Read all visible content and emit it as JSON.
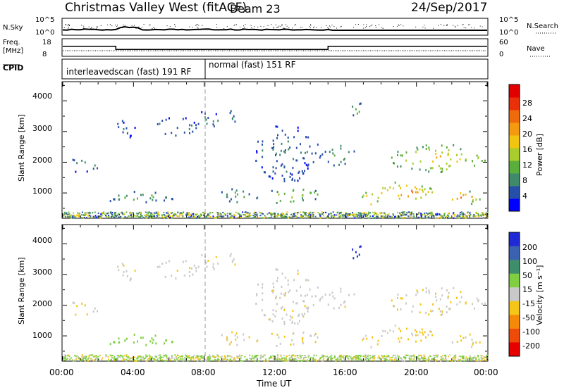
{
  "header": {
    "station": "Christmas Valley West (fitACF)",
    "beam": "Beam 23",
    "date": "24/Sep/2017"
  },
  "top_panels": {
    "nsky_label": "N.Sky",
    "nsky_ticks": [
      "10^5",
      "10^0"
    ],
    "nsearch_label": "N.Search",
    "nsearch_ticks": [
      "10^5",
      "10^0"
    ],
    "freq_label": "Freq.",
    "freq_unit": "[MHz]",
    "freq_ticks": [
      "18",
      "8"
    ],
    "nave_label": "Nave",
    "nave_ticks": [
      "60",
      "0"
    ],
    "cpid_label": "CPID",
    "cpid_modes": [
      {
        "label": "interleavedscan (fast) 191 RF",
        "start_h": 0,
        "end_h": 8
      },
      {
        "label": "normal (fast) 151 RF",
        "start_h": 8,
        "end_h": 24
      }
    ]
  },
  "axes": {
    "xlabel": "Time UT",
    "xticks": [
      "00:00",
      "04:00",
      "08:00",
      "12:00",
      "16:00",
      "20:00",
      "00:00"
    ],
    "ylabel": "Slant Range [km]",
    "yticks": [
      "1000",
      "2000",
      "3000",
      "4000"
    ]
  },
  "power_colorbar": {
    "label": "Power [dB]",
    "ticks": [
      "4",
      "8",
      "12",
      "16",
      "20",
      "24",
      "28"
    ],
    "colors": [
      "#0000ff",
      "#2650a8",
      "#3f8a6b",
      "#5aae3c",
      "#a8cd2c",
      "#f1c40f",
      "#f39a10",
      "#ee6a0c",
      "#e93008",
      "#e30000"
    ]
  },
  "velocity_colorbar": {
    "label": "Velocity [m s⁻¹]",
    "ticks": [
      "200",
      "100",
      "50",
      "15",
      "-15",
      "-50",
      "-100",
      "-200"
    ],
    "colors": [
      "#1f2ad6",
      "#3b62b0",
      "#3f8e6b",
      "#7fcf41",
      "#c9c9c9",
      "#f5c518",
      "#f58a0a",
      "#ee4b0a",
      "#e60000"
    ]
  },
  "chart_data": {
    "type": "heatmap",
    "x_range_hours": [
      0,
      24
    ],
    "y_range_km": [
      200,
      4600
    ],
    "ground_scatter_band_km": [
      200,
      400
    ],
    "frequency_mhz": [
      {
        "start_h": 0,
        "end_h": 3,
        "value": 14
      },
      {
        "start_h": 3,
        "end_h": 15,
        "value": 12
      },
      {
        "start_h": 15,
        "end_h": 24,
        "value": 14
      }
    ],
    "echo_regions": [
      {
        "t0": 0.0,
        "t1": 2.2,
        "r0": 1700,
        "r1": 2200,
        "power_db": 8,
        "velocity": -15
      },
      {
        "t0": 2.4,
        "t1": 6.2,
        "r0": 650,
        "r1": 1100,
        "power_db": 10,
        "velocity": 50
      },
      {
        "t0": 2.9,
        "t1": 4.2,
        "r0": 2800,
        "r1": 3400,
        "power_db": 6,
        "velocity": 0
      },
      {
        "t0": 5.0,
        "t1": 7.8,
        "r0": 2900,
        "r1": 3500,
        "power_db": 7,
        "velocity": 0
      },
      {
        "t0": 7.3,
        "t1": 8.9,
        "r0": 3100,
        "r1": 3700,
        "power_db": 7,
        "velocity": 0
      },
      {
        "t0": 8.9,
        "t1": 9.8,
        "r0": 3100,
        "r1": 3700,
        "power_db": 8,
        "velocity": 0
      },
      {
        "t0": 8.8,
        "t1": 10.8,
        "r0": 700,
        "r1": 1200,
        "power_db": 10,
        "velocity": -15
      },
      {
        "t0": 10.8,
        "t1": 14.8,
        "r0": 700,
        "r1": 1200,
        "power_db": 14,
        "velocity": -15
      },
      {
        "t0": 10.8,
        "t1": 14.4,
        "r0": 1400,
        "r1": 3200,
        "power_db": 7,
        "velocity": 0
      },
      {
        "t0": 14.5,
        "t1": 16.7,
        "r0": 1900,
        "r1": 2600,
        "power_db": 9,
        "velocity": 0
      },
      {
        "t0": 16.1,
        "t1": 17.1,
        "r0": 3500,
        "r1": 4000,
        "power_db": 12,
        "velocity": 200
      },
      {
        "t0": 16.8,
        "t1": 17.9,
        "r0": 600,
        "r1": 1100,
        "power_db": 22,
        "velocity": -15
      },
      {
        "t0": 17.6,
        "t1": 21.2,
        "r0": 700,
        "r1": 1400,
        "power_db": 22,
        "velocity": -15
      },
      {
        "t0": 18.2,
        "t1": 24.0,
        "r0": 1700,
        "r1": 2600,
        "power_db": 17,
        "velocity": -15
      },
      {
        "t0": 21.6,
        "t1": 23.6,
        "r0": 650,
        "r1": 1100,
        "power_db": 22,
        "velocity": -15
      }
    ]
  }
}
